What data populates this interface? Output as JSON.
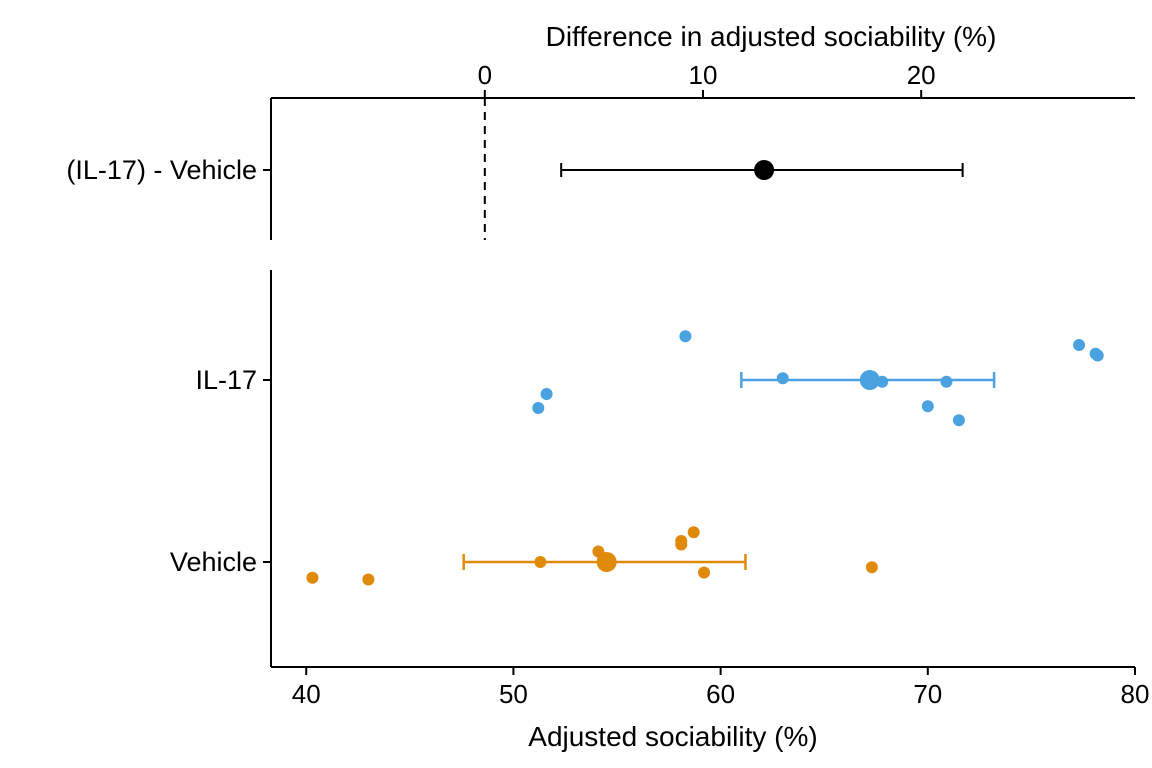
{
  "chart_data": [
    {
      "type": "scatter",
      "panel": "difference",
      "xlabel": "Difference in adjusted sociability (%)",
      "xlabel_position": "top",
      "xticks": [
        0,
        10,
        20
      ],
      "xlim": [
        -9.8,
        29.8
      ],
      "reference_line": {
        "x": 0,
        "style": "dashed"
      },
      "categories": [
        "(IL-17) - Vehicle"
      ],
      "estimates": [
        {
          "category": "(IL-17) - Vehicle",
          "mean": 12.8,
          "ci_low": 3.5,
          "ci_high": 21.9,
          "color": "#000000"
        }
      ]
    },
    {
      "type": "scatter",
      "panel": "groups",
      "xlabel": "Adjusted sociability (%)",
      "xticks": [
        40,
        50,
        60,
        70,
        80
      ],
      "xlim": [
        38.3,
        80
      ],
      "categories": [
        "IL-17",
        "Vehicle"
      ],
      "series": [
        {
          "name": "IL-17",
          "color": "#4aa3e0",
          "mean": 67.2,
          "ci_low": 61.0,
          "ci_high": 73.2,
          "points": [
            58.3,
            77.3,
            78.1,
            78.2,
            63.0,
            67.8,
            70.9,
            51.6,
            51.2,
            70.0,
            71.5
          ],
          "jitter": [
            0.25,
            0.2,
            0.15,
            0.14,
            0.01,
            -0.01,
            -0.01,
            -0.08,
            -0.16,
            -0.15,
            -0.23
          ]
        },
        {
          "name": "Vehicle",
          "color": "#e08a0c",
          "mean": 54.5,
          "ci_low": 47.6,
          "ci_high": 61.2,
          "points": [
            58.7,
            58.1,
            58.1,
            54.1,
            51.3,
            67.3,
            59.2,
            40.3,
            43.0
          ],
          "jitter": [
            0.17,
            0.12,
            0.1,
            0.06,
            0.0,
            -0.03,
            -0.06,
            -0.09,
            -0.1
          ]
        }
      ]
    }
  ]
}
